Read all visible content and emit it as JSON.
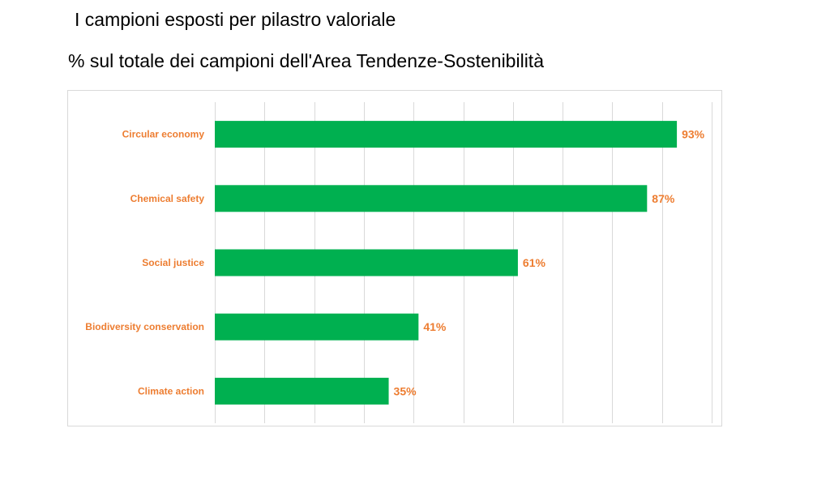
{
  "header": {
    "title": "I campioni esposti per pilastro valoriale",
    "subtitle": "% sul totale dei campioni dell'Area Tendenze-Sostenibilità"
  },
  "colors": {
    "bar": "#00b050",
    "label": "#ed7d31",
    "grid": "#d9d9d9"
  },
  "chart_data": {
    "type": "bar",
    "orientation": "horizontal",
    "categories": [
      "Circular economy",
      "Chemical safety",
      "Social justice",
      "Biodiversity conservation",
      "Climate action"
    ],
    "values": [
      93,
      87,
      61,
      41,
      35
    ],
    "value_labels": [
      "93%",
      "87%",
      "61%",
      "41%",
      "35%"
    ],
    "unit": "%",
    "xlim": [
      0,
      100
    ],
    "grid": true,
    "vertical_gridlines": 11,
    "legend": "none"
  }
}
